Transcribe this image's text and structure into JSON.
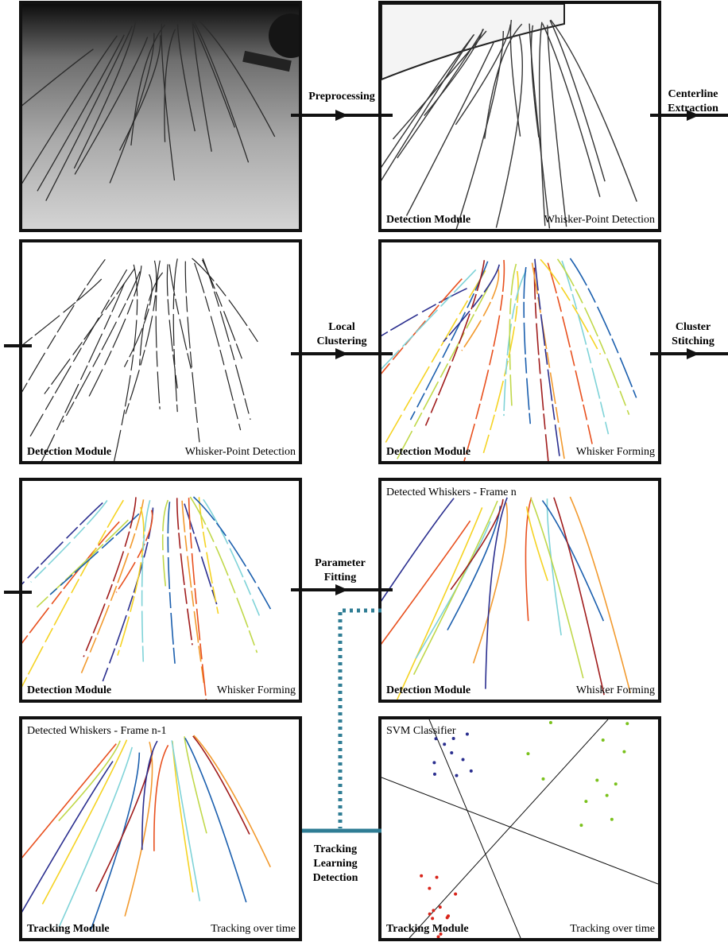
{
  "steps": [
    {
      "lines": [
        "Preprocessing"
      ]
    },
    {
      "lines": [
        "Centerline",
        "Extraction"
      ]
    },
    {
      "lines": [
        "Local",
        "Clustering"
      ]
    },
    {
      "lines": [
        "Cluster",
        "Stitching"
      ]
    },
    {
      "lines": [
        "Parameter",
        "Fitting"
      ]
    },
    {
      "lines": [
        "Tracking",
        "Learning",
        "Detection"
      ]
    }
  ],
  "panels": [
    {
      "module": "Detection Module",
      "stage": "Whisker-Point Detection"
    },
    {
      "module": "Detection Module",
      "stage": "Whisker-Point Detection"
    },
    {
      "module": "Detection Module",
      "stage": "Whisker Forming"
    },
    {
      "module": "Detection Module",
      "stage": "Whisker Forming"
    },
    {
      "title": "Detected Whiskers - Frame n",
      "module": "Detection Module",
      "stage": "Whisker Forming"
    },
    {
      "title": "Detected Whiskers - Frame n-1",
      "module": "Tracking Module",
      "stage": "Tracking over time"
    },
    {
      "title": "SVM Classifier",
      "module": "Tracking Module",
      "stage": "Tracking over time"
    }
  ]
}
